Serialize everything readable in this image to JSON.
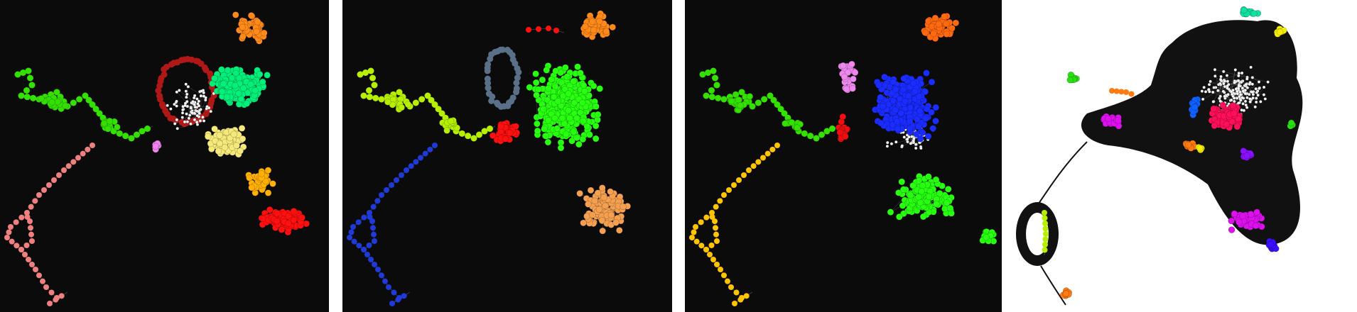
{
  "figure": {
    "panels": [
      {
        "id": "p1",
        "background": "#0b0b0b",
        "clusters": [
          {
            "name": "green-periphery",
            "color": "#33e000"
          },
          {
            "name": "salmon-chain",
            "color": "#f08080"
          },
          {
            "name": "mint-core",
            "color": "#00f07a"
          },
          {
            "name": "orange-top",
            "color": "#ff8a1a"
          },
          {
            "name": "darkred-ring",
            "color": "#b01818"
          },
          {
            "name": "yellow-center",
            "color": "#f5e97a"
          },
          {
            "name": "amber-lower",
            "color": "#ffb000"
          },
          {
            "name": "red-lower",
            "color": "#ff1010"
          },
          {
            "name": "pink-small",
            "color": "#ee82ee"
          },
          {
            "name": "white-unassigned",
            "color": "#ffffff"
          }
        ]
      },
      {
        "id": "p2",
        "background": "#0b0b0b",
        "clusters": [
          {
            "name": "lime-periphery",
            "color": "#b6f000"
          },
          {
            "name": "blue-chain",
            "color": "#1f3ad8"
          },
          {
            "name": "green-core",
            "color": "#28ff10"
          },
          {
            "name": "orange-top",
            "color": "#ff8a1a"
          },
          {
            "name": "steel-ring",
            "color": "#5a7088"
          },
          {
            "name": "red-small",
            "color": "#ff1010"
          },
          {
            "name": "tan-lower",
            "color": "#f5a050"
          }
        ]
      },
      {
        "id": "p3",
        "background": "#0b0b0b",
        "clusters": [
          {
            "name": "green-periphery",
            "color": "#33e000"
          },
          {
            "name": "gold-chain",
            "color": "#ffc400"
          },
          {
            "name": "blue-core",
            "color": "#1a2cff"
          },
          {
            "name": "orange-top",
            "color": "#ff6a10"
          },
          {
            "name": "pink-ring",
            "color": "#ee88ee"
          },
          {
            "name": "red-small",
            "color": "#ee1010"
          },
          {
            "name": "green-lower",
            "color": "#28ff10"
          },
          {
            "name": "white-unassigned",
            "color": "#ffffff"
          }
        ]
      },
      {
        "id": "p4",
        "background": "#ffffff",
        "clusters": [
          {
            "name": "black-mass",
            "color": "#111111"
          },
          {
            "name": "white-core",
            "color": "#ffffff"
          },
          {
            "name": "crimson-core",
            "color": "#ff0f5a"
          },
          {
            "name": "teal-top",
            "color": "#10e0a0"
          },
          {
            "name": "yellow-top",
            "color": "#f5f000"
          },
          {
            "name": "magenta-left",
            "color": "#dd10ee"
          },
          {
            "name": "magenta-lower",
            "color": "#dd10ee"
          },
          {
            "name": "blue-left",
            "color": "#1060ff"
          },
          {
            "name": "violet-small",
            "color": "#8a10ff"
          },
          {
            "name": "indigo-small",
            "color": "#3a10ff"
          },
          {
            "name": "green-small",
            "color": "#28e010"
          },
          {
            "name": "orange-small",
            "color": "#ff7a10"
          },
          {
            "name": "lime-chain",
            "color": "#b6f000"
          }
        ]
      }
    ]
  }
}
